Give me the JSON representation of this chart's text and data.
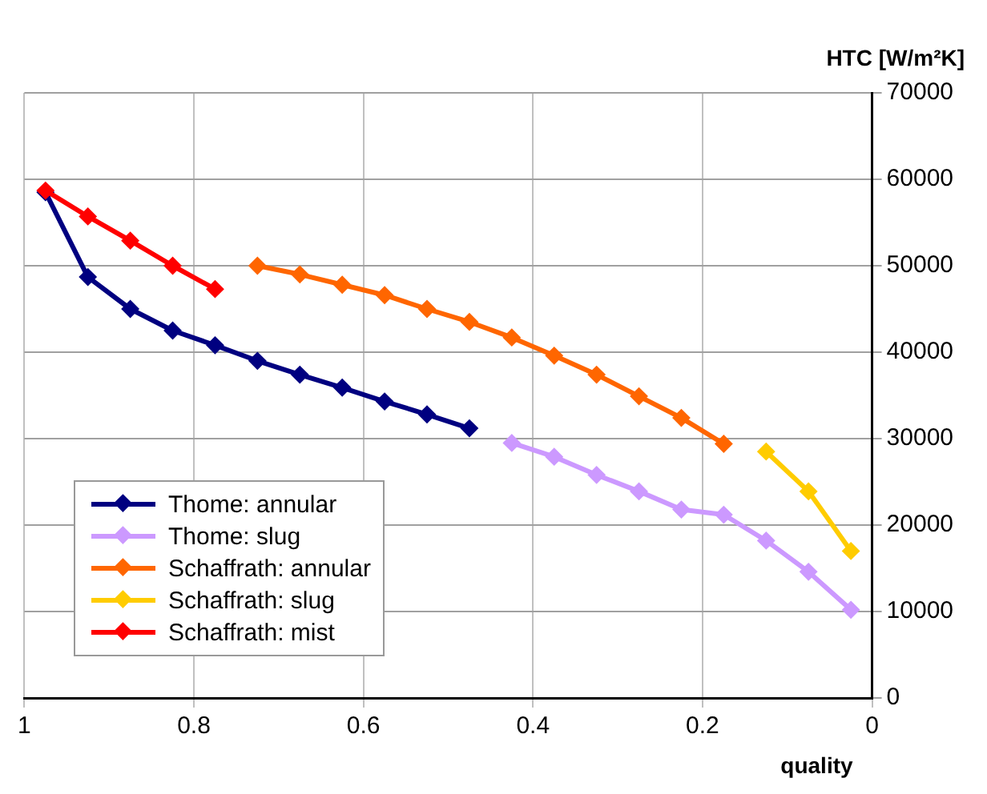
{
  "chart_data": {
    "type": "line",
    "xlabel": "quality",
    "ylabel": "HTC [W/m²K]",
    "xlim": [
      1,
      0
    ],
    "xticks": [
      1,
      0.8,
      0.6,
      0.4,
      0.2,
      0
    ],
    "ylim": [
      0,
      70000
    ],
    "yticks": [
      0,
      10000,
      20000,
      30000,
      40000,
      50000,
      60000,
      70000
    ],
    "grid": true,
    "legend": "bottom left",
    "marker": "diamond",
    "line_style": "solid",
    "series": [
      {
        "name": "Thome: annular",
        "color": "#000080",
        "x": [
          0.975,
          0.925,
          0.875,
          0.825,
          0.775,
          0.725,
          0.675,
          0.625,
          0.575,
          0.525,
          0.475
        ],
        "values": [
          58500,
          48700,
          45000,
          42500,
          40800,
          39000,
          37400,
          35900,
          34300,
          32800,
          31200
        ]
      },
      {
        "name": "Thome: slug",
        "color": "#cc99ff",
        "x": [
          0.425,
          0.375,
          0.325,
          0.275,
          0.225,
          0.175,
          0.125,
          0.075,
          0.025
        ],
        "values": [
          29500,
          27900,
          25800,
          23900,
          21800,
          21200,
          18200,
          14600,
          10200
        ]
      },
      {
        "name": "Schaffrath: annular",
        "color": "#ff6600",
        "x": [
          0.725,
          0.675,
          0.625,
          0.575,
          0.525,
          0.475,
          0.425,
          0.375,
          0.325,
          0.275,
          0.225,
          0.175
        ],
        "values": [
          50000,
          49000,
          47800,
          46600,
          45000,
          43500,
          41700,
          39600,
          37400,
          34900,
          32400,
          29400
        ]
      },
      {
        "name": "Schaffrath: slug",
        "color": "#ffcc00",
        "x": [
          0.125,
          0.075,
          0.025
        ],
        "values": [
          28500,
          23900,
          17000
        ]
      },
      {
        "name": "Schaffrath: mist",
        "color": "#ff0000",
        "x": [
          0.975,
          0.925,
          0.875,
          0.825,
          0.775
        ],
        "values": [
          58700,
          55700,
          52900,
          50000,
          47300
        ]
      }
    ]
  }
}
